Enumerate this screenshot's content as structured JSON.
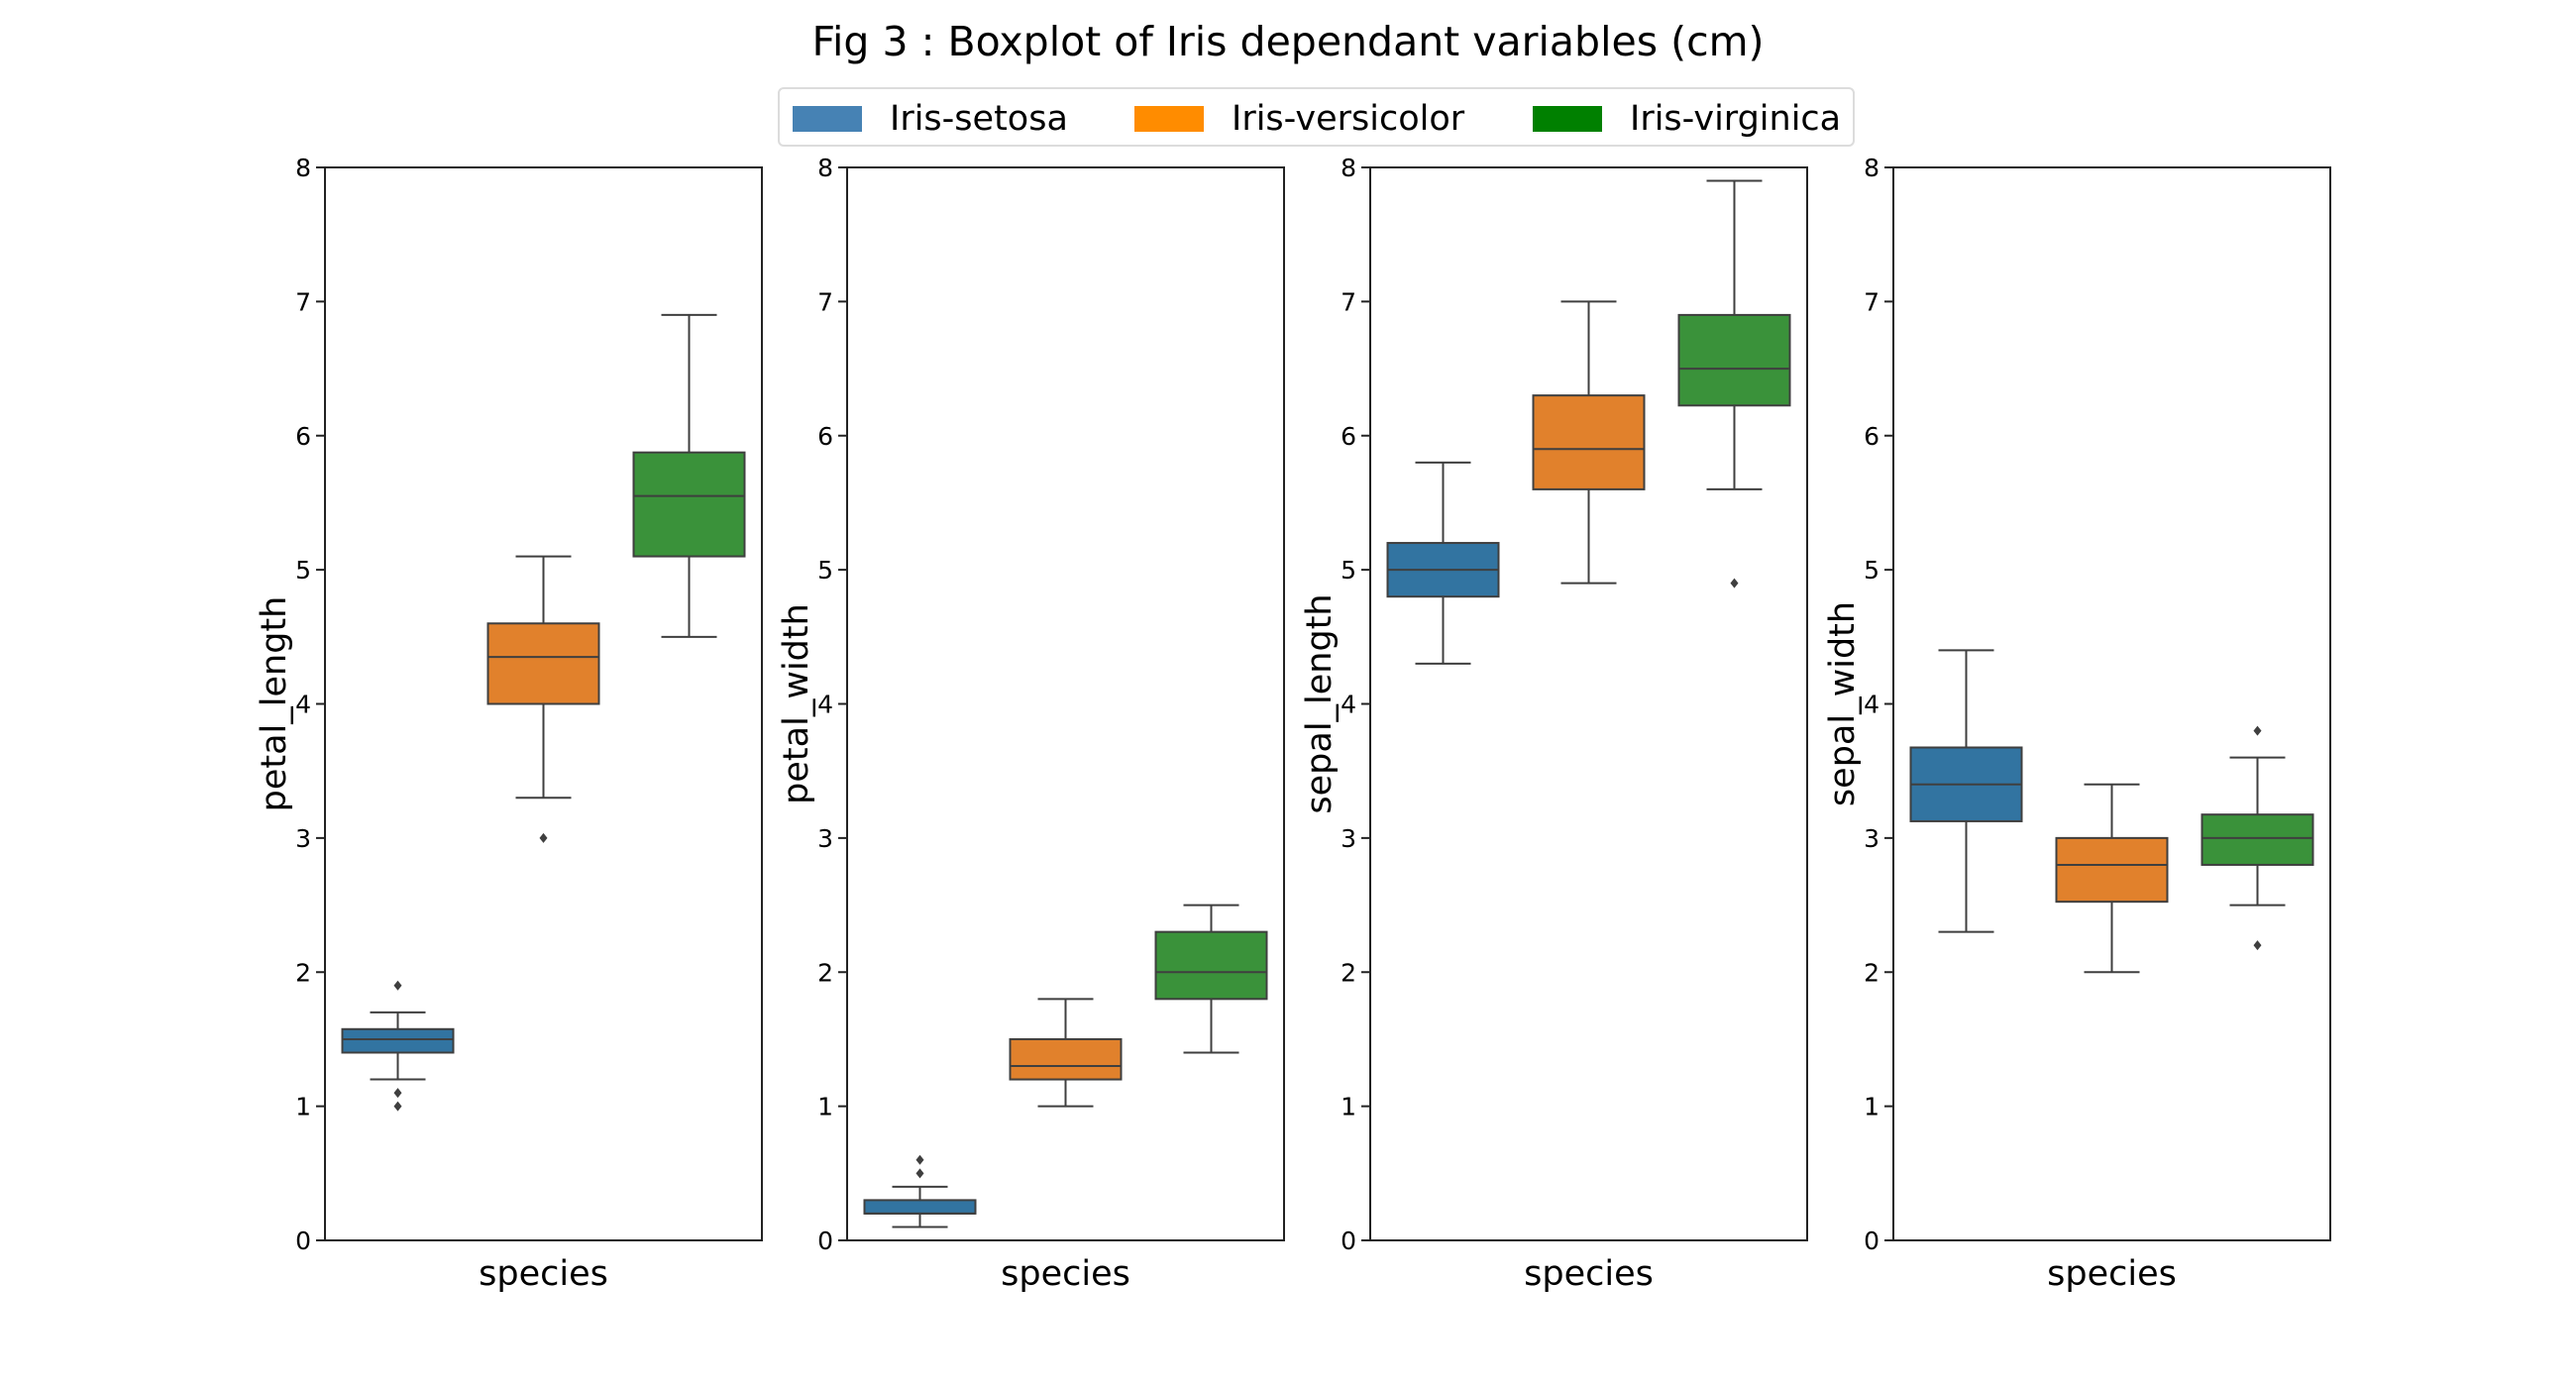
{
  "chart_data": {
    "type": "boxplot",
    "title": "Fig 3 : Boxplot of Iris dependant variables (cm)",
    "ylim": [
      0,
      8
    ],
    "yticks": [
      "0",
      "1",
      "2",
      "3",
      "4",
      "5",
      "6",
      "7",
      "8"
    ],
    "legend": {
      "placement": "top-center",
      "entries": [
        {
          "name": "Iris-setosa",
          "color": "#4682b4"
        },
        {
          "name": "Iris-versicolor",
          "color": "#ff8c00"
        },
        {
          "name": "Iris-virginica",
          "color": "#008000"
        }
      ]
    },
    "box_colors": [
      "#3274a1",
      "#e1812c",
      "#3a923a"
    ],
    "grid": false,
    "panels": [
      {
        "ylabel": "petal_length",
        "xlabel": "species",
        "boxes": [
          {
            "name": "Iris-setosa",
            "whisker_low": 1.2,
            "q1": 1.4,
            "median": 1.5,
            "q3": 1.575,
            "whisker_high": 1.7,
            "outliers": [
              1.9,
              1.1,
              1.0
            ]
          },
          {
            "name": "Iris-versicolor",
            "whisker_low": 3.3,
            "q1": 4.0,
            "median": 4.35,
            "q3": 4.6,
            "whisker_high": 5.1,
            "outliers": [
              3.0
            ]
          },
          {
            "name": "Iris-virginica",
            "whisker_low": 4.5,
            "q1": 5.1,
            "median": 5.55,
            "q3": 5.875,
            "whisker_high": 6.9,
            "outliers": []
          }
        ]
      },
      {
        "ylabel": "petal_width",
        "xlabel": "species",
        "boxes": [
          {
            "name": "Iris-setosa",
            "whisker_low": 0.1,
            "q1": 0.2,
            "median": 0.2,
            "q3": 0.3,
            "whisker_high": 0.4,
            "outliers": [
              0.5,
              0.6
            ]
          },
          {
            "name": "Iris-versicolor",
            "whisker_low": 1.0,
            "q1": 1.2,
            "median": 1.3,
            "q3": 1.5,
            "whisker_high": 1.8,
            "outliers": []
          },
          {
            "name": "Iris-virginica",
            "whisker_low": 1.4,
            "q1": 1.8,
            "median": 2.0,
            "q3": 2.3,
            "whisker_high": 2.5,
            "outliers": []
          }
        ]
      },
      {
        "ylabel": "sepal_length",
        "xlabel": "species",
        "boxes": [
          {
            "name": "Iris-setosa",
            "whisker_low": 4.3,
            "q1": 4.8,
            "median": 5.0,
            "q3": 5.2,
            "whisker_high": 5.8,
            "outliers": []
          },
          {
            "name": "Iris-versicolor",
            "whisker_low": 4.9,
            "q1": 5.6,
            "median": 5.9,
            "q3": 6.3,
            "whisker_high": 7.0,
            "outliers": []
          },
          {
            "name": "Iris-virginica",
            "whisker_low": 5.6,
            "q1": 6.225,
            "median": 6.5,
            "q3": 6.9,
            "whisker_high": 7.9,
            "outliers": [
              4.9
            ]
          }
        ]
      },
      {
        "ylabel": "sepal_width",
        "xlabel": "species",
        "boxes": [
          {
            "name": "Iris-setosa",
            "whisker_low": 2.3,
            "q1": 3.125,
            "median": 3.4,
            "q3": 3.675,
            "whisker_high": 4.4,
            "outliers": []
          },
          {
            "name": "Iris-versicolor",
            "whisker_low": 2.0,
            "q1": 2.525,
            "median": 2.8,
            "q3": 3.0,
            "whisker_high": 3.4,
            "outliers": []
          },
          {
            "name": "Iris-virginica",
            "whisker_low": 2.5,
            "q1": 2.8,
            "median": 3.0,
            "q3": 3.175,
            "whisker_high": 3.6,
            "outliers": [
              3.8,
              2.2
            ]
          }
        ]
      }
    ]
  }
}
